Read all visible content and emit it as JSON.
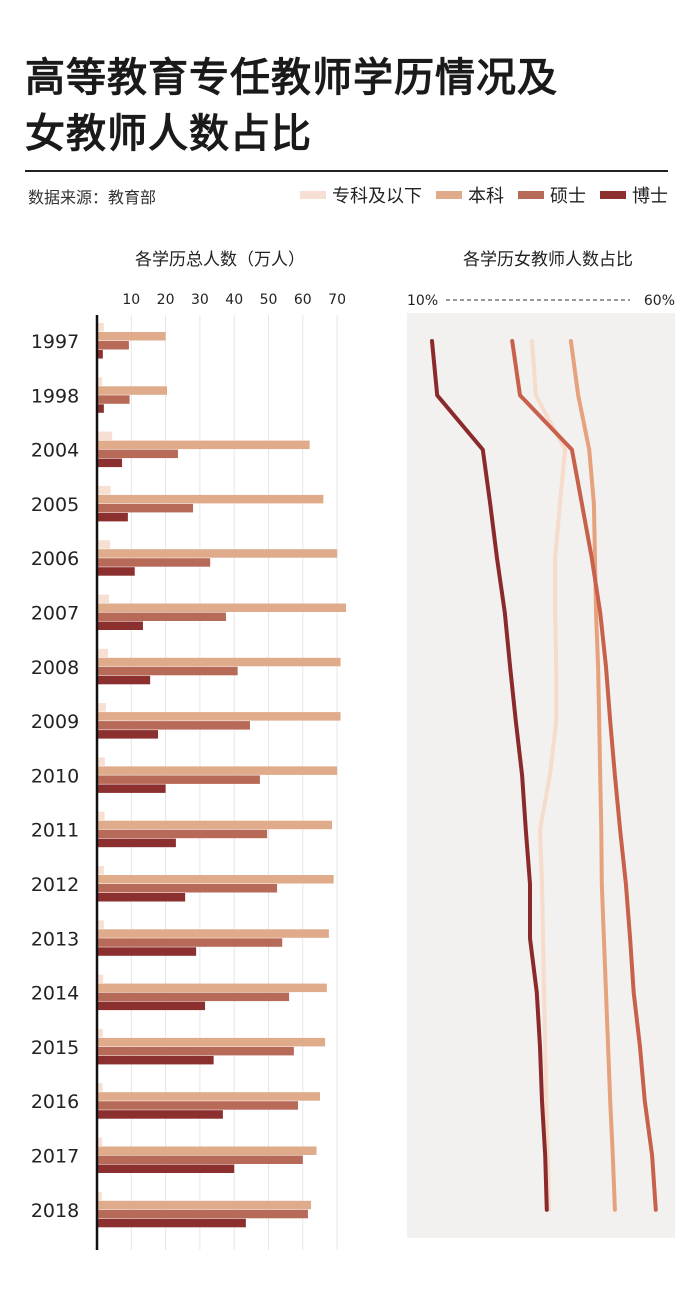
{
  "title_line1": "高等教育专任教师学历情况及",
  "title_line2": "女教师人数占比",
  "source": "数据来源：教育部",
  "chart_data": [
    {
      "type": "bar",
      "title": "各学历总人数（万人）",
      "orientation": "horizontal",
      "categories": [
        "1997",
        "1998",
        "2004",
        "2005",
        "2006",
        "2007",
        "2008",
        "2009",
        "2010",
        "2011",
        "2012",
        "2013",
        "2014",
        "2015",
        "2016",
        "2017",
        "2018"
      ],
      "xticks": [
        "10",
        "20",
        "30",
        "40",
        "50",
        "60",
        "70"
      ],
      "xlim": [
        0,
        75
      ],
      "grid": true,
      "legend_position": "top-right",
      "series": [
        {
          "name": "专科及以下",
          "color": "#f7e0d3",
          "values": [
            2,
            1.5,
            4.4,
            4,
            3.8,
            3.5,
            3.2,
            2.6,
            2.3,
            2.2,
            2,
            2,
            1.8,
            1.7,
            1.6,
            1.5,
            1.4
          ]
        },
        {
          "name": "本科",
          "color": "#dfab8a",
          "values": [
            20,
            20.4,
            62,
            66,
            70,
            72.6,
            71,
            71,
            70,
            68.5,
            69,
            67.6,
            67,
            66.5,
            65,
            64,
            62.4
          ]
        },
        {
          "name": "硕士",
          "color": "#b86a58",
          "values": [
            9.3,
            9.5,
            23.6,
            28,
            33,
            37.6,
            41,
            44.6,
            47.5,
            49.6,
            52.5,
            54,
            56,
            57.4,
            58.6,
            60,
            61.5
          ]
        },
        {
          "name": "博士",
          "color": "#8b2f2f",
          "values": [
            1.7,
            2,
            7.3,
            9,
            11,
            13.4,
            15.5,
            17.8,
            20,
            23,
            25.7,
            28.9,
            31.5,
            34,
            36.7,
            40,
            43.4
          ]
        }
      ]
    },
    {
      "type": "line",
      "title": "各学历女教师人数占比",
      "xlabel_left": "10%",
      "xlabel_right": "60%",
      "xlim": [
        10,
        60
      ],
      "categories": [
        "1997",
        "1998",
        "2004",
        "2005",
        "2006",
        "2007",
        "2008",
        "2009",
        "2010",
        "2011",
        "2012",
        "2013",
        "2014",
        "2015",
        "2016",
        "2017",
        "2018"
      ],
      "series": [
        {
          "name": "专科及以下",
          "color": "#f6dccb",
          "values": [
            33.3,
            34.0,
            39.6,
            38.6,
            37.7,
            37.7,
            37.9,
            37.9,
            36.7,
            34.8,
            35.2,
            35.4,
            35.6,
            35.8,
            36.0,
            36.3,
            36.5
          ]
        },
        {
          "name": "本科",
          "color": "#e6a27c",
          "values": [
            40.7,
            42.1,
            44.2,
            45.1,
            45.3,
            45.5,
            45.9,
            46.1,
            46.3,
            46.5,
            46.6,
            47.0,
            47.4,
            47.8,
            48.2,
            48.7,
            49.1
          ]
        },
        {
          "name": "硕士",
          "color": "#c8614b",
          "values": [
            29.5,
            31.0,
            40.9,
            42.8,
            44.7,
            46.3,
            47.4,
            48.2,
            49.1,
            50.1,
            51.2,
            52.0,
            52.7,
            53.9,
            54.8,
            56.2,
            56.9
          ]
        },
        {
          "name": "博士",
          "color": "#8b2a2a",
          "values": [
            14.2,
            15.2,
            23.9,
            25.3,
            26.6,
            28.1,
            29.1,
            30.2,
            31.4,
            32.1,
            32.9,
            32.9,
            34.2,
            34.8,
            35.2,
            35.8,
            36.1
          ]
        }
      ]
    }
  ]
}
